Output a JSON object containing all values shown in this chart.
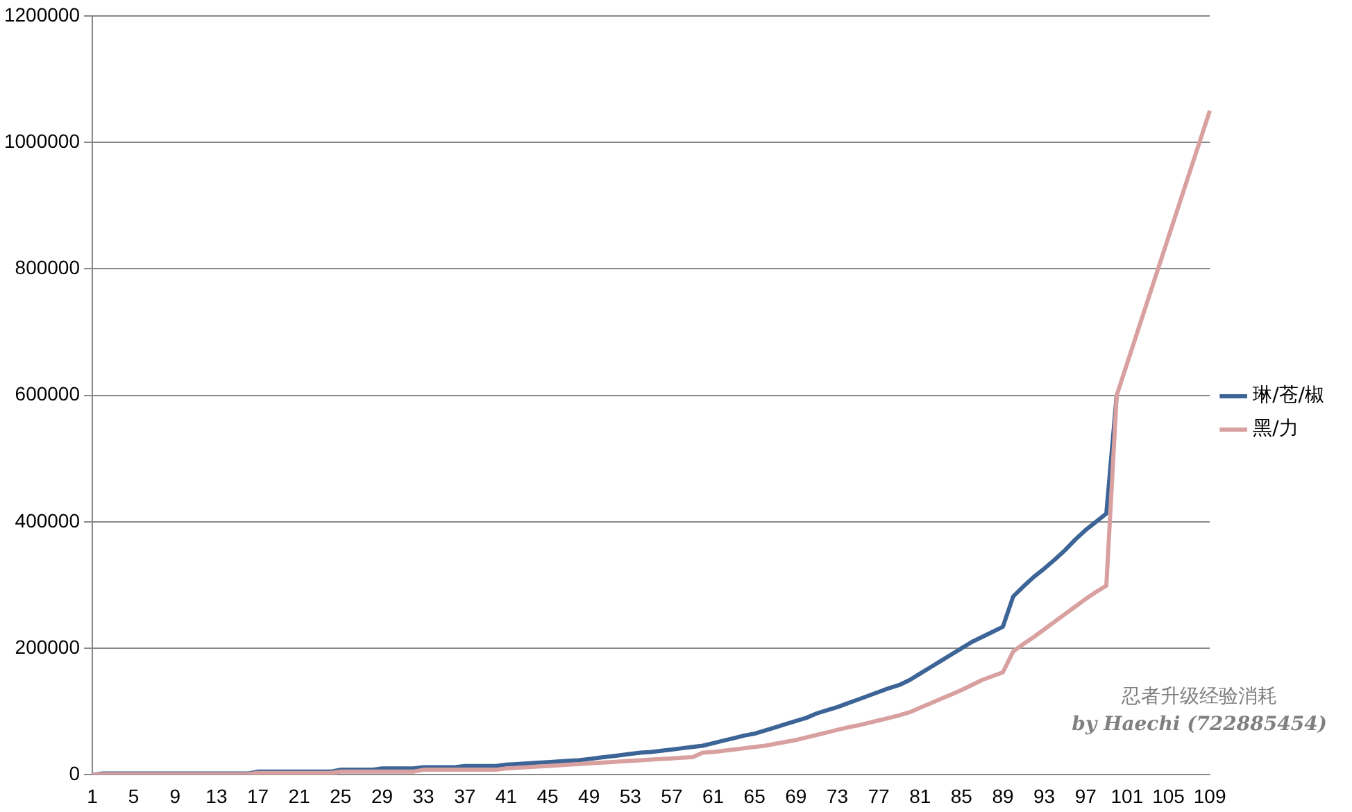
{
  "chart_data": {
    "type": "line",
    "categories": [
      "1",
      null,
      null,
      null,
      "5",
      null,
      null,
      null,
      "9",
      null,
      null,
      null,
      "13",
      null,
      null,
      null,
      "17",
      null,
      null,
      null,
      "21",
      null,
      null,
      null,
      "25",
      null,
      null,
      null,
      "29",
      null,
      null,
      null,
      "33",
      null,
      null,
      null,
      "37",
      null,
      null,
      null,
      "41",
      null,
      null,
      null,
      "45",
      null,
      null,
      null,
      "49",
      null,
      null,
      null,
      "53",
      null,
      null,
      null,
      "57",
      null,
      null,
      null,
      "61",
      null,
      null,
      null,
      "65",
      null,
      null,
      null,
      "69",
      null,
      null,
      null,
      "73",
      null,
      null,
      null,
      "77",
      null,
      null,
      null,
      "81",
      null,
      null,
      null,
      "85",
      null,
      null,
      null,
      "89",
      null,
      null,
      null,
      "93",
      null,
      null,
      null,
      "97",
      null,
      null,
      null,
      "101",
      null,
      null,
      null,
      "105",
      null,
      null,
      null,
      "109"
    ],
    "series": [
      {
        "name": "琳/苍/椒",
        "color": "#3d6496",
        "values": [
          0,
          2000,
          2000,
          2000,
          2000,
          2000,
          2000,
          2000,
          2000,
          2000,
          2000,
          2000,
          2000,
          2000,
          2000,
          2000,
          5000,
          5000,
          5000,
          5000,
          5000,
          5000,
          5000,
          5000,
          8000,
          8000,
          8000,
          8000,
          10000,
          10000,
          10000,
          10000,
          12000,
          12000,
          12000,
          12000,
          14000,
          14000,
          14000,
          14000,
          16000,
          17000,
          18000,
          19000,
          20000,
          21000,
          22000,
          23000,
          25000,
          27000,
          29000,
          31000,
          33000,
          35000,
          36000,
          38000,
          40000,
          42000,
          44000,
          46000,
          50000,
          54000,
          58000,
          62000,
          65000,
          70000,
          75000,
          80000,
          85000,
          90000,
          97000,
          102000,
          107000,
          113000,
          119000,
          125000,
          131000,
          137000,
          142000,
          150000,
          160000,
          170000,
          180000,
          190000,
          200000,
          210000,
          218000,
          226000,
          234000,
          282000,
          298000,
          313000,
          326000,
          340000,
          355000,
          372000,
          387000,
          400000,
          413000,
          600000,
          null,
          null,
          null,
          null,
          null,
          null,
          null,
          null,
          null
        ]
      },
      {
        "name": "黑/力",
        "color": "#d9a0a0",
        "values": [
          0,
          1000,
          1000,
          1000,
          1000,
          1000,
          1000,
          1000,
          1000,
          1000,
          1000,
          1000,
          1000,
          1000,
          1000,
          1000,
          3000,
          3000,
          3000,
          3000,
          3000,
          3000,
          3000,
          3000,
          5000,
          5000,
          5000,
          5000,
          5000,
          5000,
          5000,
          5000,
          8000,
          8000,
          8000,
          8000,
          8000,
          8000,
          8000,
          8000,
          10000,
          11000,
          12000,
          13000,
          14000,
          15000,
          16000,
          17000,
          18000,
          19000,
          20000,
          21000,
          22000,
          23000,
          24000,
          25000,
          26000,
          27000,
          28000,
          35000,
          36000,
          38000,
          40000,
          42000,
          44000,
          46000,
          49000,
          52000,
          55000,
          59000,
          63000,
          67000,
          71000,
          75000,
          78000,
          82000,
          86000,
          90000,
          94000,
          99000,
          106000,
          113000,
          120000,
          127000,
          134000,
          142000,
          150000,
          156000,
          162000,
          195000,
          207000,
          218000,
          230000,
          242000,
          254000,
          266000,
          278000,
          289000,
          299000,
          600000,
          650000,
          700000,
          750000,
          800000,
          850000,
          900000,
          950000,
          1000000,
          1050000
        ]
      }
    ],
    "ylim": [
      0,
      1200000
    ],
    "yticks": [
      0,
      200000,
      400000,
      600000,
      800000,
      1000000,
      1200000
    ],
    "grid": "y",
    "legend": "right",
    "marker": "none",
    "line_style": "solid",
    "annotations": [
      "忍者升级经验消耗",
      "by Haechi (722885454)"
    ]
  }
}
